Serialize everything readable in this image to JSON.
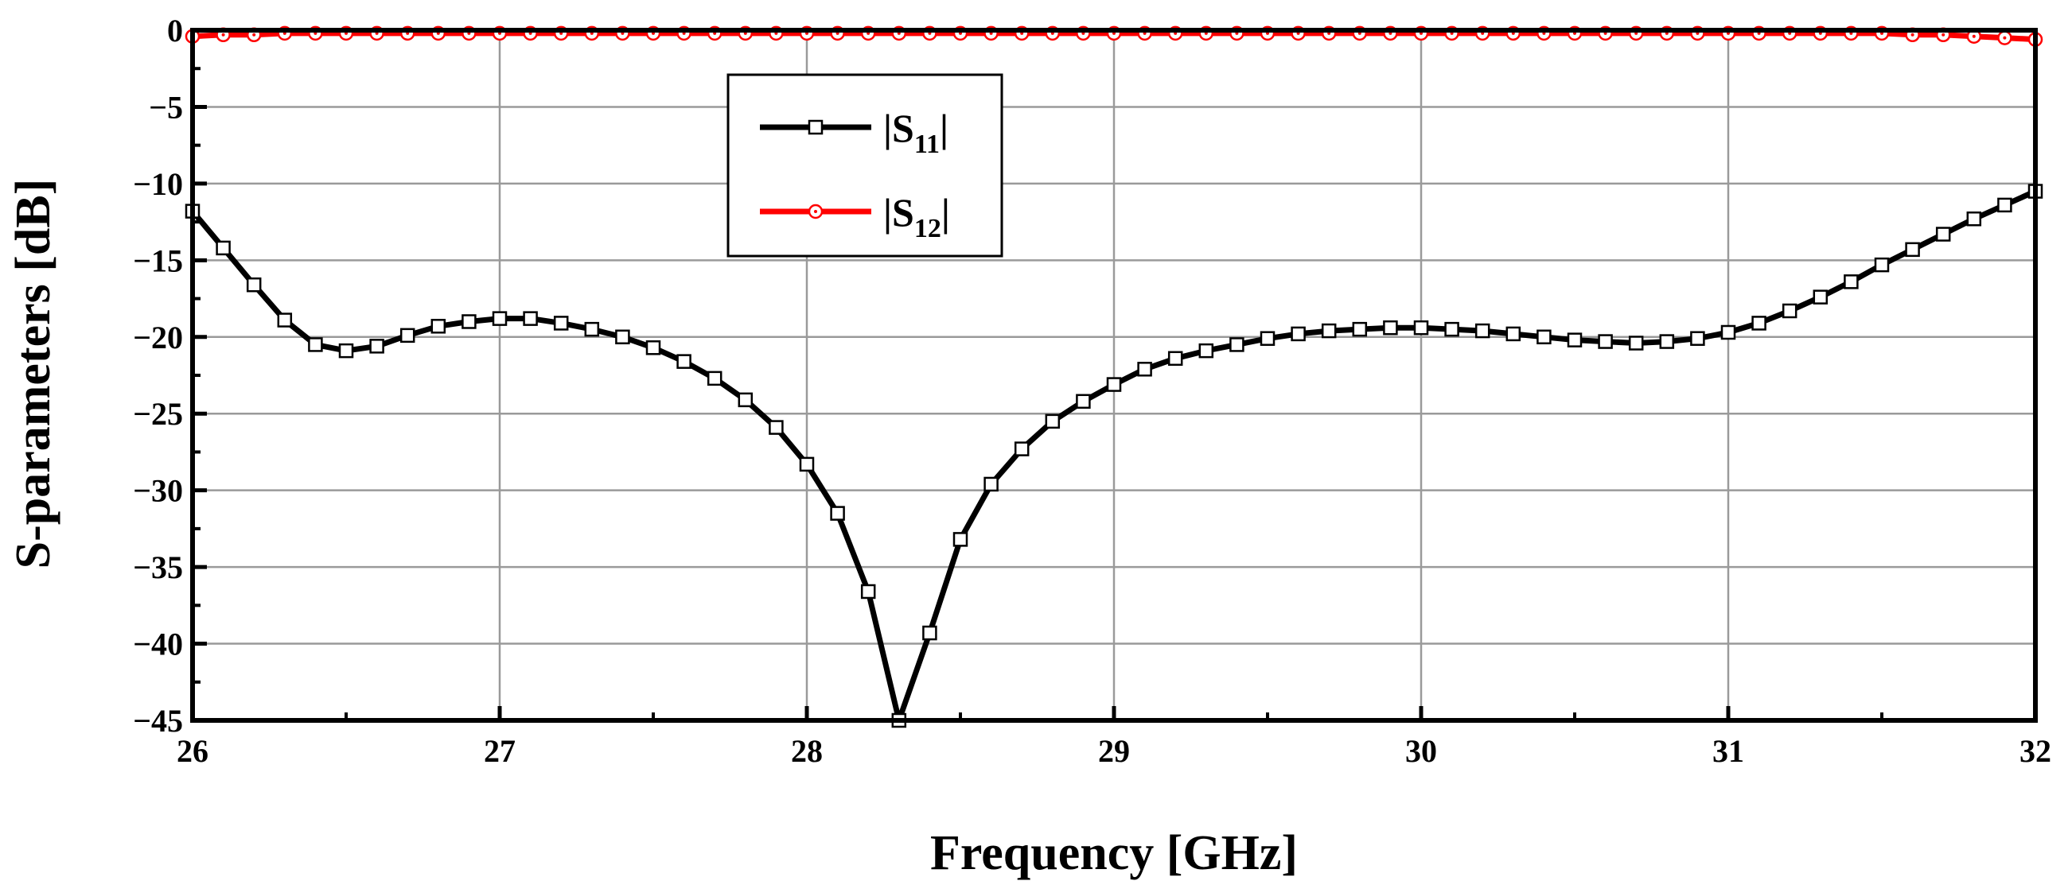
{
  "chart_data": {
    "type": "line",
    "title": "",
    "xlabel": "Frequency [GHz]",
    "ylabel": "S-parameters [dB]",
    "xlim": [
      26,
      32
    ],
    "ylim": [
      -45,
      0
    ],
    "xticks": [
      26,
      27,
      28,
      29,
      30,
      31,
      32
    ],
    "yticks": [
      0,
      -5,
      -10,
      -15,
      -20,
      -25,
      -30,
      -35,
      -40,
      -45
    ],
    "grid": true,
    "legend_position": "top-center",
    "series": [
      {
        "name": "|S11|",
        "legend_main": "|S",
        "legend_sub": "11",
        "legend_tail": "|",
        "color": "#000000",
        "marker": "square",
        "x": [
          26.0,
          26.1,
          26.2,
          26.3,
          26.4,
          26.5,
          26.6,
          26.7,
          26.8,
          26.9,
          27.0,
          27.1,
          27.2,
          27.3,
          27.4,
          27.5,
          27.6,
          27.7,
          27.8,
          27.9,
          28.0,
          28.1,
          28.2,
          28.3,
          28.4,
          28.5,
          28.6,
          28.7,
          28.8,
          28.9,
          29.0,
          29.1,
          29.2,
          29.3,
          29.4,
          29.5,
          29.6,
          29.7,
          29.8,
          29.9,
          30.0,
          30.1,
          30.2,
          30.3,
          30.4,
          30.5,
          30.6,
          30.7,
          30.8,
          30.9,
          31.0,
          31.1,
          31.2,
          31.3,
          31.4,
          31.5,
          31.6,
          31.7,
          31.8,
          31.9,
          32.0
        ],
        "y": [
          -11.8,
          -14.2,
          -16.6,
          -18.9,
          -20.5,
          -20.9,
          -20.6,
          -19.9,
          -19.3,
          -19.0,
          -18.8,
          -18.8,
          -19.1,
          -19.5,
          -20.0,
          -20.7,
          -21.6,
          -22.7,
          -24.1,
          -25.9,
          -28.3,
          -31.5,
          -36.6,
          -45.0,
          -39.3,
          -33.2,
          -29.6,
          -27.3,
          -25.5,
          -24.2,
          -23.1,
          -22.1,
          -21.4,
          -20.9,
          -20.5,
          -20.1,
          -19.8,
          -19.6,
          -19.5,
          -19.4,
          -19.4,
          -19.5,
          -19.6,
          -19.8,
          -20.0,
          -20.2,
          -20.3,
          -20.4,
          -20.3,
          -20.1,
          -19.7,
          -19.1,
          -18.3,
          -17.4,
          -16.4,
          -15.3,
          -14.3,
          -13.3,
          -12.3,
          -11.4,
          -10.5
        ]
      },
      {
        "name": "|S12|",
        "legend_main": "|S",
        "legend_sub": "12",
        "legend_tail": "|",
        "color": "#ff0000",
        "marker": "circle",
        "x": [
          26.0,
          26.1,
          26.2,
          26.3,
          26.4,
          26.5,
          26.6,
          26.7,
          26.8,
          26.9,
          27.0,
          27.1,
          27.2,
          27.3,
          27.4,
          27.5,
          27.6,
          27.7,
          27.8,
          27.9,
          28.0,
          28.1,
          28.2,
          28.3,
          28.4,
          28.5,
          28.6,
          28.7,
          28.8,
          28.9,
          29.0,
          29.1,
          29.2,
          29.3,
          29.4,
          29.5,
          29.6,
          29.7,
          29.8,
          29.9,
          30.0,
          30.1,
          30.2,
          30.3,
          30.4,
          30.5,
          30.6,
          30.7,
          30.8,
          30.9,
          31.0,
          31.1,
          31.2,
          31.3,
          31.4,
          31.5,
          31.6,
          31.7,
          31.8,
          31.9,
          32.0
        ],
        "y": [
          -0.4,
          -0.3,
          -0.3,
          -0.2,
          -0.2,
          -0.2,
          -0.2,
          -0.2,
          -0.2,
          -0.2,
          -0.2,
          -0.2,
          -0.2,
          -0.2,
          -0.2,
          -0.2,
          -0.2,
          -0.2,
          -0.2,
          -0.2,
          -0.2,
          -0.2,
          -0.2,
          -0.2,
          -0.2,
          -0.2,
          -0.2,
          -0.2,
          -0.2,
          -0.2,
          -0.2,
          -0.2,
          -0.2,
          -0.2,
          -0.2,
          -0.2,
          -0.2,
          -0.2,
          -0.2,
          -0.2,
          -0.2,
          -0.2,
          -0.2,
          -0.2,
          -0.2,
          -0.2,
          -0.2,
          -0.2,
          -0.2,
          -0.2,
          -0.2,
          -0.2,
          -0.2,
          -0.2,
          -0.2,
          -0.2,
          -0.3,
          -0.3,
          -0.4,
          -0.5,
          -0.6
        ]
      }
    ]
  }
}
